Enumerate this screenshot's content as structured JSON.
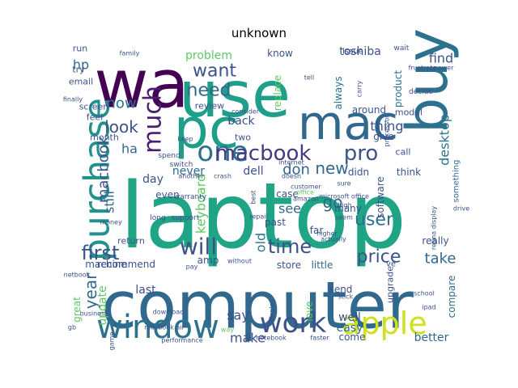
{
  "chart_data": {
    "type": "wordcloud",
    "title": "unknown",
    "colormap": "viridis",
    "words": [
      {
        "text": "laptop",
        "weight": 1.0,
        "color": "#20a486",
        "rot": 0
      },
      {
        "text": "computer",
        "weight": 0.72,
        "color": "#31688e",
        "rot": 0
      },
      {
        "text": "use",
        "weight": 0.8,
        "color": "#1f9e89",
        "rot": 0
      },
      {
        "text": "wa",
        "weight": 0.78,
        "color": "#440154",
        "rot": 0
      },
      {
        "text": "buy",
        "weight": 0.66,
        "color": "#2c728e",
        "rot": 90
      },
      {
        "text": "pc",
        "weight": 0.66,
        "color": "#1f9e89",
        "rot": 0
      },
      {
        "text": "mac",
        "weight": 0.58,
        "color": "#31688e",
        "rot": 0
      },
      {
        "text": "purchase",
        "weight": 0.42,
        "color": "#21918c",
        "rot": 90
      },
      {
        "text": "window",
        "weight": 0.4,
        "color": "#2c728e",
        "rot": 0
      },
      {
        "text": "apple",
        "weight": 0.38,
        "color": "#cde11d",
        "rot": 0
      },
      {
        "text": "work",
        "weight": 0.36,
        "color": "#3b528b",
        "rot": 0
      },
      {
        "text": "one",
        "weight": 0.34,
        "color": "#2c728e",
        "rot": 0
      },
      {
        "text": "much",
        "weight": 0.3,
        "color": "#481f70",
        "rot": 90
      },
      {
        "text": "macbook",
        "weight": 0.3,
        "color": "#443983",
        "rot": 0
      },
      {
        "text": "pro",
        "weight": 0.3,
        "color": "#3b528b",
        "rot": 0
      },
      {
        "text": "time",
        "weight": 0.26,
        "color": "#3b528b",
        "rot": 0
      },
      {
        "text": "will",
        "weight": 0.26,
        "color": "#3b528b",
        "rot": 0
      },
      {
        "text": "user",
        "weight": 0.22,
        "color": "#2c728e",
        "rot": 0
      },
      {
        "text": "price",
        "weight": 0.22,
        "color": "#3b528b",
        "rot": 0
      },
      {
        "text": "first",
        "weight": 0.22,
        "color": "#3b528b",
        "rot": 0
      },
      {
        "text": "year",
        "weight": 0.2,
        "color": "#31688e",
        "rot": 90
      },
      {
        "text": "need",
        "weight": 0.2,
        "color": "#31688e",
        "rot": 0
      },
      {
        "text": "want",
        "weight": 0.2,
        "color": "#3b528b",
        "rot": 0
      },
      {
        "text": "new",
        "weight": 0.2,
        "color": "#31688e",
        "rot": 0
      },
      {
        "text": "look",
        "weight": 0.18,
        "color": "#3b528b",
        "rot": 0
      },
      {
        "text": "go",
        "weight": 0.18,
        "color": "#31688e",
        "rot": 0
      },
      {
        "text": "take",
        "weight": 0.18,
        "color": "#31688e",
        "rot": 0
      },
      {
        "text": "macbook",
        "weight": 0.18,
        "color": "#3b528b",
        "rot": 90
      },
      {
        "text": "keyboard",
        "weight": 0.16,
        "color": "#5ec962",
        "rot": 90
      },
      {
        "text": "desktop",
        "weight": 0.16,
        "color": "#2c728e",
        "rot": 90
      },
      {
        "text": "don",
        "weight": 0.16,
        "color": "#31688e",
        "rot": 0
      },
      {
        "text": "now",
        "weight": 0.16,
        "color": "#2c728e",
        "rot": 0
      },
      {
        "text": "ha",
        "weight": 0.15,
        "color": "#31688e",
        "rot": 0
      },
      {
        "text": "old",
        "weight": 0.15,
        "color": "#2c728e",
        "rot": 90
      },
      {
        "text": "thing",
        "weight": 0.14,
        "color": "#3b528b",
        "rot": 0
      },
      {
        "text": "say",
        "weight": 0.14,
        "color": "#3b528b",
        "rot": 0
      },
      {
        "text": "make",
        "weight": 0.14,
        "color": "#3b528b",
        "rot": 0
      },
      {
        "text": "hp",
        "weight": 0.14,
        "color": "#31688e",
        "rot": 0
      },
      {
        "text": "find",
        "weight": 0.14,
        "color": "#3b528b",
        "rot": 0
      },
      {
        "text": "still",
        "weight": 0.14,
        "color": "#31688e",
        "rot": 90
      },
      {
        "text": "see",
        "weight": 0.14,
        "color": "#31688e",
        "rot": 0
      },
      {
        "text": "last",
        "weight": 0.12,
        "color": "#3b528b",
        "rot": 0
      },
      {
        "text": "back",
        "weight": 0.12,
        "color": "#3b528b",
        "rot": 0
      },
      {
        "text": "problem",
        "weight": 0.12,
        "color": "#5ec962",
        "rot": 0
      },
      {
        "text": "toshiba",
        "weight": 0.12,
        "color": "#3b528b",
        "rot": 0
      },
      {
        "text": "never",
        "weight": 0.12,
        "color": "#31688e",
        "rot": 0
      },
      {
        "text": "dell",
        "weight": 0.12,
        "color": "#3b528b",
        "rot": 0
      },
      {
        "text": "day",
        "weight": 0.12,
        "color": "#3b528b",
        "rot": 0
      },
      {
        "text": "didn",
        "weight": 0.11,
        "color": "#3b528b",
        "rot": 0
      },
      {
        "text": "update",
        "weight": 0.11,
        "color": "#5ec962",
        "rot": 90
      },
      {
        "text": "well",
        "weight": 0.11,
        "color": "#3b528b",
        "rot": 0
      },
      {
        "text": "easy",
        "weight": 0.11,
        "color": "#31688e",
        "rot": 0
      },
      {
        "text": "better",
        "weight": 0.11,
        "color": "#31688e",
        "rot": 0
      },
      {
        "text": "compare",
        "weight": 0.1,
        "color": "#31688e",
        "rot": 90
      },
      {
        "text": "software",
        "weight": 0.1,
        "color": "#3b528b",
        "rot": 90
      },
      {
        "text": "product",
        "weight": 0.1,
        "color": "#2c728e",
        "rot": 90
      },
      {
        "text": "always",
        "weight": 0.1,
        "color": "#2c728e",
        "rot": 90
      },
      {
        "text": "replace",
        "weight": 0.09,
        "color": "#5ec962",
        "rot": 90
      },
      {
        "text": "know",
        "weight": 0.09,
        "color": "#3b528b",
        "rot": 0
      },
      {
        "text": "give",
        "weight": 0.09,
        "color": "#3b528b",
        "rot": 0
      },
      {
        "text": "around",
        "weight": 0.09,
        "color": "#3b528b",
        "rot": 0
      },
      {
        "text": "recommend",
        "weight": 0.09,
        "color": "#3b528b",
        "rot": 0
      },
      {
        "text": "really",
        "weight": 0.09,
        "color": "#3b528b",
        "rot": 0
      },
      {
        "text": "store",
        "weight": 0.09,
        "color": "#3b528b",
        "rot": 0
      },
      {
        "text": "little",
        "weight": 0.09,
        "color": "#31688e",
        "rot": 0
      },
      {
        "text": "amp",
        "weight": 0.09,
        "color": "#3b528b",
        "rot": 0
      },
      {
        "text": "great",
        "weight": 0.08,
        "color": "#5ec962",
        "rot": 90
      },
      {
        "text": "love",
        "weight": 0.08,
        "color": "#5ec962",
        "rot": 90
      },
      {
        "text": "come",
        "weight": 0.08,
        "color": "#3b528b",
        "rot": 0
      },
      {
        "text": "think",
        "weight": 0.08,
        "color": "#3b528b",
        "rot": 0
      },
      {
        "text": "many",
        "weight": 0.08,
        "color": "#3b528b",
        "rot": 0
      },
      {
        "text": "send",
        "weight": 0.08,
        "color": "#3b528b",
        "rot": 0
      },
      {
        "text": "something",
        "weight": 0.07,
        "color": "#31688e",
        "rot": 90
      },
      {
        "text": "past",
        "weight": 0.07,
        "color": "#3b528b",
        "rot": 0
      },
      {
        "text": "far",
        "weight": 0.07,
        "color": "#3b528b",
        "rot": 0
      },
      {
        "text": "case",
        "weight": 0.07,
        "color": "#3b528b",
        "rot": 0
      },
      {
        "text": "even",
        "weight": 0.07,
        "color": "#3b528b",
        "rot": 0
      },
      {
        "text": "run",
        "weight": 0.06,
        "color": "#3b528b",
        "rot": 0
      },
      {
        "text": "review",
        "weight": 0.06,
        "color": "#3b528b",
        "rot": 0
      },
      {
        "text": "try",
        "weight": 0.06,
        "color": "#3b528b",
        "rot": 0
      },
      {
        "text": "email",
        "weight": 0.06,
        "color": "#3b528b",
        "rot": 0
      },
      {
        "text": "screen",
        "weight": 0.06,
        "color": "#3b528b",
        "rot": 0
      },
      {
        "text": "feel",
        "weight": 0.06,
        "color": "#3b528b",
        "rot": 0
      },
      {
        "text": "month",
        "weight": 0.06,
        "color": "#3b528b",
        "rot": 0
      },
      {
        "text": "two",
        "weight": 0.06,
        "color": "#3b528b",
        "rot": 0
      },
      {
        "text": "call",
        "weight": 0.06,
        "color": "#3b528b",
        "rot": 0
      },
      {
        "text": "model",
        "weight": 0.06,
        "color": "#3b528b",
        "rot": 0
      },
      {
        "text": "decide",
        "weight": 0.06,
        "color": "#3b528b",
        "rot": 0
      },
      {
        "text": "issue",
        "weight": 0.05,
        "color": "#3b528b",
        "rot": 0
      },
      {
        "text": "wait",
        "weight": 0.05,
        "color": "#3b528b",
        "rot": 0
      },
      {
        "text": "return",
        "weight": 0.05,
        "color": "#3b528b",
        "rot": 0
      },
      {
        "text": "upgrade",
        "weight": 0.05,
        "color": "#3b528b",
        "rot": 90
      },
      {
        "text": "machine",
        "weight": 0.05,
        "color": "#3b528b",
        "rot": 0
      },
      {
        "text": "ve",
        "weight": 0.06,
        "color": "#3b528b",
        "rot": 0
      },
      {
        "text": "microsoft office",
        "weight": 0.05,
        "color": "#3b528b",
        "rot": 0
      },
      {
        "text": "high",
        "weight": 0.04,
        "color": "#3b528b",
        "rot": 0
      },
      {
        "text": "warranty",
        "weight": 0.04,
        "color": "#3b528b",
        "rot": 0
      },
      {
        "text": "support",
        "weight": 0.04,
        "color": "#3b528b",
        "rot": 0
      },
      {
        "text": "long",
        "weight": 0.04,
        "color": "#3b528b",
        "rot": 0
      },
      {
        "text": "best",
        "weight": 0.04,
        "color": "#3b528b",
        "rot": 90
      },
      {
        "text": "seem",
        "weight": 0.04,
        "color": "#3b528b",
        "rot": 0
      },
      {
        "text": "office",
        "weight": 0.04,
        "color": "#5ec962",
        "rot": 0
      },
      {
        "text": "amazon",
        "weight": 0.04,
        "color": "#3b528b",
        "rot": 0
      },
      {
        "text": "customer",
        "weight": 0.04,
        "color": "#3b528b",
        "rot": 0
      },
      {
        "text": "repair",
        "weight": 0.04,
        "color": "#3b528b",
        "rot": 0
      },
      {
        "text": "carry",
        "weight": 0.04,
        "color": "#3b528b",
        "rot": 90
      },
      {
        "text": "processor",
        "weight": 0.04,
        "color": "#3b528b",
        "rot": 90
      },
      {
        "text": "doesn",
        "weight": 0.04,
        "color": "#3b528b",
        "rot": 0
      },
      {
        "text": "internet",
        "weight": 0.04,
        "color": "#3b528b",
        "rot": 0
      },
      {
        "text": "another",
        "weight": 0.04,
        "color": "#3b528b",
        "rot": 0
      },
      {
        "text": "crash",
        "weight": 0.04,
        "color": "#3b528b",
        "rot": 0
      },
      {
        "text": "switch",
        "weight": 0.04,
        "color": "#3b528b",
        "rot": 0
      },
      {
        "text": "keep",
        "weight": 0.04,
        "color": "#3b528b",
        "rot": 0
      },
      {
        "text": "finally",
        "weight": 0.04,
        "color": "#3b528b",
        "rot": 0
      },
      {
        "text": "higher",
        "weight": 0.04,
        "color": "#3b528b",
        "rot": 0
      },
      {
        "text": "actually",
        "weight": 0.04,
        "color": "#3b528b",
        "rot": 0
      },
      {
        "text": "drive",
        "weight": 0.04,
        "color": "#3b528b",
        "rot": 0
      },
      {
        "text": "retina display",
        "weight": 0.04,
        "color": "#3b528b",
        "rot": 90
      },
      {
        "text": "display",
        "weight": 0.04,
        "color": "#3b528b",
        "rot": 90
      },
      {
        "text": "notebook",
        "weight": 0.04,
        "color": "#3b528b",
        "rot": 0
      },
      {
        "text": "faster",
        "weight": 0.04,
        "color": "#3b528b",
        "rot": 0
      },
      {
        "text": "performance",
        "weight": 0.04,
        "color": "#3b528b",
        "rot": 0
      },
      {
        "text": "business",
        "weight": 0.04,
        "color": "#3b528b",
        "rot": 0
      },
      {
        "text": "download",
        "weight": 0.03,
        "color": "#3b528b",
        "rot": 0
      },
      {
        "text": "macbook air",
        "weight": 0.03,
        "color": "#3b528b",
        "rot": 0
      },
      {
        "text": "gb",
        "weight": 0.03,
        "color": "#3b528b",
        "rot": 0
      },
      {
        "text": "game",
        "weight": 0.03,
        "color": "#3b528b",
        "rot": 90
      },
      {
        "text": "netbook",
        "weight": 0.03,
        "color": "#3b528b",
        "rot": 0
      },
      {
        "text": "without",
        "weight": 0.03,
        "color": "#3b528b",
        "rot": 0
      },
      {
        "text": "money",
        "weight": 0.03,
        "color": "#3b528b",
        "rot": 0
      },
      {
        "text": "pay",
        "weight": 0.03,
        "color": "#3b528b",
        "rot": 0
      },
      {
        "text": "school",
        "weight": 0.03,
        "color": "#3b528b",
        "rot": 0
      },
      {
        "text": "ipad",
        "weight": 0.03,
        "color": "#3b528b",
        "rot": 0
      },
      {
        "text": "stick",
        "weight": 0.03,
        "color": "#3b528b",
        "rot": 0
      },
      {
        "text": "spend",
        "weight": 0.03,
        "color": "#3b528b",
        "rot": 0
      },
      {
        "text": "way",
        "weight": 0.03,
        "color": "#5ec962",
        "rot": 0
      },
      {
        "text": "tell",
        "weight": 0.03,
        "color": "#3b528b",
        "rot": 0
      },
      {
        "text": "power",
        "weight": 0.03,
        "color": "#3b528b",
        "rot": 0
      },
      {
        "text": "family",
        "weight": 0.03,
        "color": "#3b528b",
        "rot": 0
      },
      {
        "text": "frustrate",
        "weight": 0.03,
        "color": "#3b528b",
        "rot": 0
      },
      {
        "text": "sure",
        "weight": 0.03,
        "color": "#3b528b",
        "rot": 0
      },
      {
        "text": "consider",
        "weight": 0.03,
        "color": "#3b528b",
        "rot": 0
      },
      {
        "text": "good",
        "weight": 0.03,
        "color": "#3b528b",
        "rot": 90
      }
    ]
  }
}
